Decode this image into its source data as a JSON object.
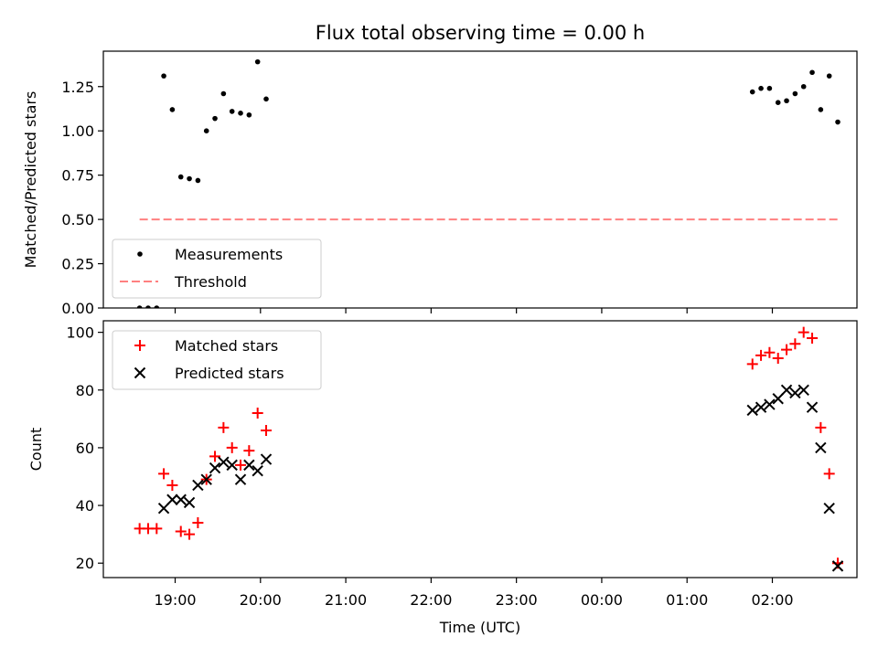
{
  "title": "Flux total observing time = 0.00 h",
  "chart_data": [
    {
      "type": "scatter",
      "xlabel": "",
      "ylabel": "Matched/Predicted stars",
      "ylim": [
        0,
        1.45
      ],
      "yticks": [
        "0.00",
        "0.25",
        "0.50",
        "0.75",
        "1.00",
        "1.25"
      ],
      "legend_placement": "lower-left",
      "series": [
        {
          "name": "Measurements",
          "marker": "dot",
          "color": "#000000",
          "points": [
            [
              "18:35",
              0.0
            ],
            [
              "18:41",
              0.0
            ],
            [
              "18:47",
              0.0
            ],
            [
              "18:52",
              1.31
            ],
            [
              "18:58",
              1.12
            ],
            [
              "19:04",
              0.74
            ],
            [
              "19:10",
              0.73
            ],
            [
              "19:16",
              0.72
            ],
            [
              "19:22",
              1.0
            ],
            [
              "19:28",
              1.07
            ],
            [
              "19:34",
              1.21
            ],
            [
              "19:40",
              1.11
            ],
            [
              "19:46",
              1.1
            ],
            [
              "19:52",
              1.09
            ],
            [
              "19:58",
              1.39
            ],
            [
              "20:04",
              1.18
            ],
            [
              "01:46",
              1.22
            ],
            [
              "01:52",
              1.24
            ],
            [
              "01:58",
              1.24
            ],
            [
              "02:04",
              1.16
            ],
            [
              "02:10",
              1.17
            ],
            [
              "02:16",
              1.21
            ],
            [
              "02:22",
              1.25
            ],
            [
              "02:28",
              1.33
            ],
            [
              "02:34",
              1.12
            ],
            [
              "02:40",
              1.31
            ],
            [
              "02:46",
              1.05
            ]
          ]
        },
        {
          "name": "Threshold",
          "style": "dashed",
          "color": "#ff8080",
          "points": [
            [
              "18:35",
              0.5
            ],
            [
              "02:46",
              0.5
            ]
          ]
        }
      ]
    },
    {
      "type": "scatter",
      "xlabel": "Time (UTC)",
      "ylabel": "Count",
      "ylim": [
        15,
        104
      ],
      "yticks": [
        "20",
        "40",
        "60",
        "80",
        "100"
      ],
      "xtick_labels": [
        "19:00",
        "20:00",
        "21:00",
        "22:00",
        "23:00",
        "00:00",
        "01:00",
        "02:00"
      ],
      "legend_placement": "top-left",
      "series": [
        {
          "name": "Matched stars",
          "marker": "plus",
          "color": "#ff0000",
          "points": [
            [
              "18:35",
              32
            ],
            [
              "18:41",
              32
            ],
            [
              "18:47",
              32
            ],
            [
              "18:52",
              51
            ],
            [
              "18:58",
              47
            ],
            [
              "19:04",
              31
            ],
            [
              "19:10",
              30
            ],
            [
              "19:16",
              34
            ],
            [
              "19:22",
              49
            ],
            [
              "19:28",
              57
            ],
            [
              "19:34",
              67
            ],
            [
              "19:40",
              60
            ],
            [
              "19:46",
              54
            ],
            [
              "19:52",
              59
            ],
            [
              "19:58",
              72
            ],
            [
              "20:04",
              66
            ],
            [
              "01:46",
              89
            ],
            [
              "01:52",
              92
            ],
            [
              "01:58",
              93
            ],
            [
              "02:04",
              91
            ],
            [
              "02:10",
              94
            ],
            [
              "02:16",
              96
            ],
            [
              "02:22",
              100
            ],
            [
              "02:28",
              98
            ],
            [
              "02:34",
              67
            ],
            [
              "02:40",
              51
            ],
            [
              "02:46",
              20
            ]
          ]
        },
        {
          "name": "Predicted stars",
          "marker": "x",
          "color": "#000000",
          "points": [
            [
              "18:52",
              39
            ],
            [
              "18:58",
              42
            ],
            [
              "19:04",
              42
            ],
            [
              "19:10",
              41
            ],
            [
              "19:16",
              47
            ],
            [
              "19:22",
              49
            ],
            [
              "19:28",
              53
            ],
            [
              "19:34",
              55
            ],
            [
              "19:40",
              54
            ],
            [
              "19:46",
              49
            ],
            [
              "19:52",
              54
            ],
            [
              "19:58",
              52
            ],
            [
              "20:04",
              56
            ],
            [
              "01:46",
              73
            ],
            [
              "01:52",
              74
            ],
            [
              "01:58",
              75
            ],
            [
              "02:04",
              77
            ],
            [
              "02:10",
              80
            ],
            [
              "02:16",
              79
            ],
            [
              "02:22",
              80
            ],
            [
              "02:28",
              74
            ],
            [
              "02:34",
              60
            ],
            [
              "02:40",
              39
            ],
            [
              "02:46",
              19
            ]
          ]
        }
      ]
    }
  ]
}
